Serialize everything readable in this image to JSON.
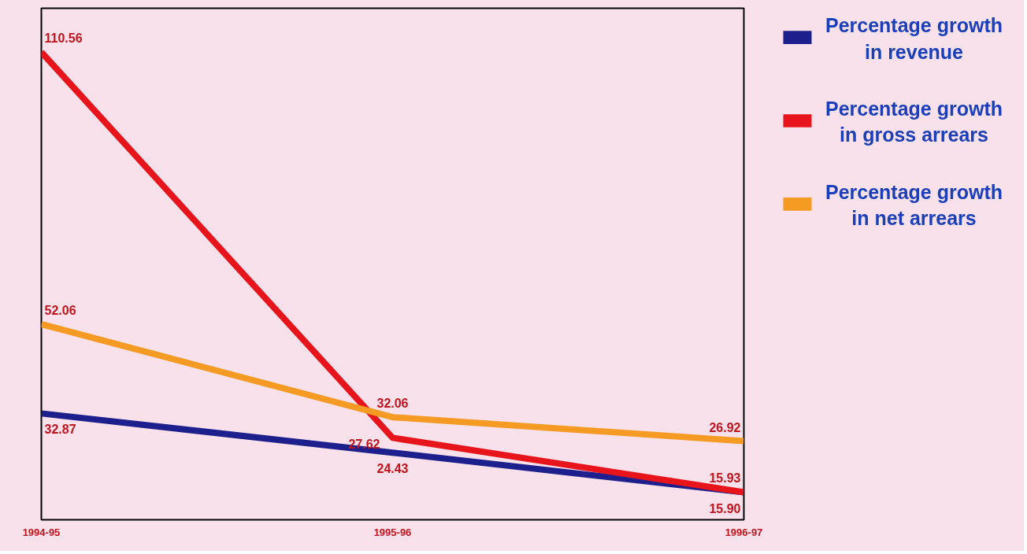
{
  "chart_data": {
    "type": "line",
    "categories": [
      "1994-95",
      "1995-96",
      "1996-97"
    ],
    "series": [
      {
        "name": "Percentage growth in revenue",
        "color": "#1c1f8c",
        "values": [
          32.87,
          24.43,
          15.9
        ],
        "value_labels": [
          "32.87",
          "24.43",
          "15.90"
        ]
      },
      {
        "name": "Percentage growth in gross arrears",
        "color": "#e8141c",
        "values": [
          110.56,
          27.62,
          15.93
        ],
        "value_labels": [
          "110.56",
          "27.62",
          "15.93"
        ]
      },
      {
        "name": "Percentage growth in net arrears",
        "color": "#f59a23",
        "values": [
          52.06,
          32.06,
          26.92
        ],
        "value_labels": [
          "52.06",
          "32.06",
          "26.92"
        ]
      }
    ],
    "ylim": [
      10,
      120
    ],
    "data_labels": true,
    "legend": "right",
    "grid": false,
    "marker": "none",
    "line_style": "solid",
    "tick_labels": "x"
  }
}
